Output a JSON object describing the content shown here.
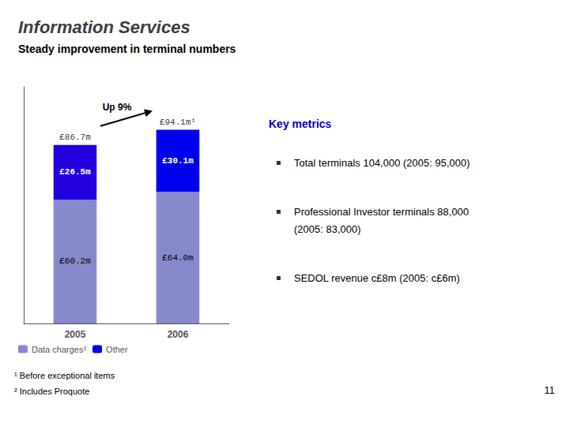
{
  "chart_data": {
    "type": "bar",
    "title": "Information Services",
    "subtitle": "Steady improvement in terminal numbers",
    "categories": [
      "2005",
      "2006"
    ],
    "stacked": true,
    "data_labels": true,
    "series": [
      {
        "name": "Data charges²",
        "color": "#8888cc",
        "values": [
          60.2,
          64.0
        ],
        "value_labels": [
          "£60.2m",
          "£64.0m"
        ]
      },
      {
        "name": "Other",
        "color": "#0000ee",
        "colors": [
          "#2200dd",
          "#0000ee"
        ],
        "values": [
          26.5,
          30.1
        ],
        "value_labels": [
          "£26.5m",
          "£30.1m"
        ]
      }
    ],
    "ylim": [
      0,
      115
    ],
    "grid": false,
    "legend": "lower left",
    "tick_labels": "x",
    "annotations": [
      {
        "text": "£86.7m",
        "x": "2005",
        "y": 86.7
      },
      {
        "text": "£94.1m¹",
        "x": "2006",
        "y": 94.1
      },
      {
        "text": "Up 9%",
        "arrow": [
          "2005",
          "2006"
        ]
      }
    ],
    "panel": {
      "title": "Key metrics",
      "bullets": [
        [
          "Total terminals 104,000 (2005: 95,000)"
        ],
        [
          "Professional Investor terminals 88,000",
          "(2005: 83,000)"
        ],
        [
          "SEDOL revenue c£8m (2005: c£6m)"
        ]
      ]
    },
    "footnotes": [
      "¹ Before exceptional items",
      "² Includes Proquote"
    ],
    "page_number": "11"
  }
}
